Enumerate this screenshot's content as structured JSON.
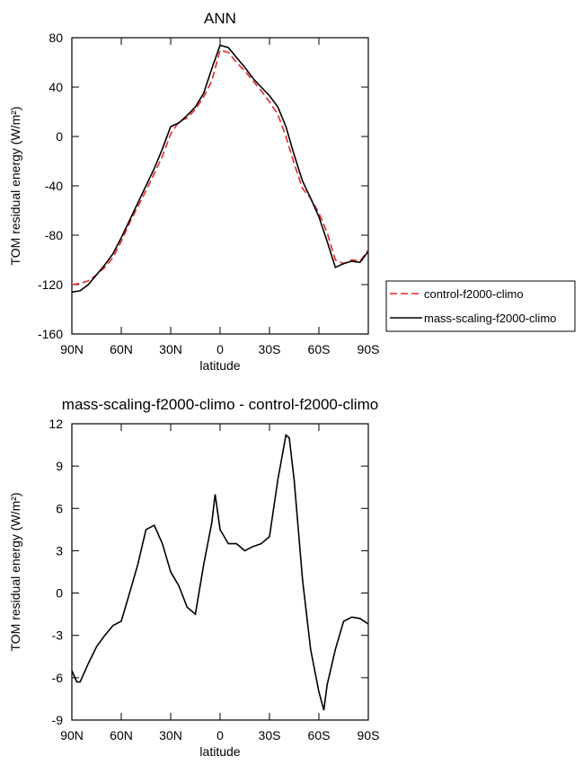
{
  "chart_data": [
    {
      "type": "line",
      "title": "ANN",
      "xlabel": "latitude",
      "ylabel": "TOM residual energy (W/m²)",
      "x": [
        90,
        85,
        80,
        75,
        70,
        65,
        60,
        55,
        50,
        45,
        40,
        35,
        30,
        25,
        20,
        15,
        10,
        5,
        0,
        -5,
        -10,
        -15,
        -20,
        -25,
        -30,
        -35,
        -40,
        -45,
        -50,
        -55,
        -60,
        -65,
        -70,
        -75,
        -80,
        -85,
        -90
      ],
      "series": [
        {
          "name": "control-f2000-climo",
          "color": "#e8262a",
          "dash": "dashed",
          "values": [
            -120,
            -119,
            -117,
            -112,
            -106,
            -98,
            -85,
            -70,
            -57,
            -44,
            -30,
            -16,
            2,
            12,
            15,
            22,
            32,
            45,
            70,
            68,
            60,
            53,
            45,
            37,
            28,
            18,
            0,
            -22,
            -42,
            -50,
            -62,
            -78,
            -100,
            -103,
            -100,
            -101,
            -92
          ]
        },
        {
          "name": "mass-scaling-f2000-climo",
          "color": "#000000",
          "dash": "solid",
          "values": [
            -126,
            -125,
            -120,
            -112,
            -104,
            -95,
            -82,
            -68,
            -54,
            -40,
            -26,
            -10,
            8,
            11,
            17,
            24,
            35,
            55,
            74,
            72,
            64,
            56,
            47,
            40,
            33,
            24,
            8,
            -15,
            -36,
            -50,
            -65,
            -85,
            -106,
            -103,
            -101,
            -102,
            -93
          ]
        }
      ],
      "xlim": [
        90,
        -90
      ],
      "xticks": [
        {
          "value": 90,
          "label": "90N"
        },
        {
          "value": 60,
          "label": "60N"
        },
        {
          "value": 30,
          "label": "30N"
        },
        0,
        {
          "value": -30,
          "label": "30S"
        },
        {
          "value": -60,
          "label": "60S"
        },
        {
          "value": -90,
          "label": "90S"
        }
      ],
      "ylim": [
        -160,
        80
      ],
      "yticks": [
        -160,
        -120,
        -80,
        -40,
        0,
        40,
        80
      ],
      "legend": "outside-right"
    },
    {
      "type": "line",
      "title": "mass-scaling-f2000-climo - control-f2000-climo",
      "xlabel": "latitude",
      "ylabel": "TOM residual energy (W/m²)",
      "x": [
        90,
        87,
        85,
        80,
        75,
        70,
        65,
        60,
        55,
        50,
        45,
        40,
        35,
        30,
        25,
        20,
        15,
        10,
        5,
        3,
        0,
        -5,
        -10,
        -15,
        -20,
        -25,
        -30,
        -35,
        -40,
        -42,
        -45,
        -50,
        -55,
        -60,
        -63,
        -65,
        -70,
        -75,
        -80,
        -85,
        -90
      ],
      "series": [
        {
          "color": "#000000",
          "dash": "solid",
          "values": [
            -5.5,
            -6.3,
            -6.3,
            -5,
            -3.8,
            -3,
            -2.3,
            -2,
            0,
            2,
            4.5,
            4.8,
            3.5,
            1.5,
            0.5,
            -1,
            -1.5,
            2,
            5,
            7,
            4.5,
            3.5,
            3.5,
            3,
            3.3,
            3.5,
            4,
            8,
            11.2,
            11,
            8,
            1,
            -4,
            -7,
            -8.3,
            -6.5,
            -4,
            -2,
            -1.7,
            -1.8,
            -2.2
          ]
        }
      ],
      "xlim": [
        90,
        -90
      ],
      "xticks": [
        {
          "value": 90,
          "label": "90N"
        },
        {
          "value": 60,
          "label": "60N"
        },
        {
          "value": 30,
          "label": "30N"
        },
        0,
        {
          "value": -30,
          "label": "30S"
        },
        {
          "value": -60,
          "label": "60S"
        },
        {
          "value": -90,
          "label": "90S"
        }
      ],
      "ylim": [
        -9,
        12
      ],
      "yticks": [
        -9,
        -6,
        -3,
        0,
        3,
        6,
        9,
        12
      ]
    }
  ]
}
